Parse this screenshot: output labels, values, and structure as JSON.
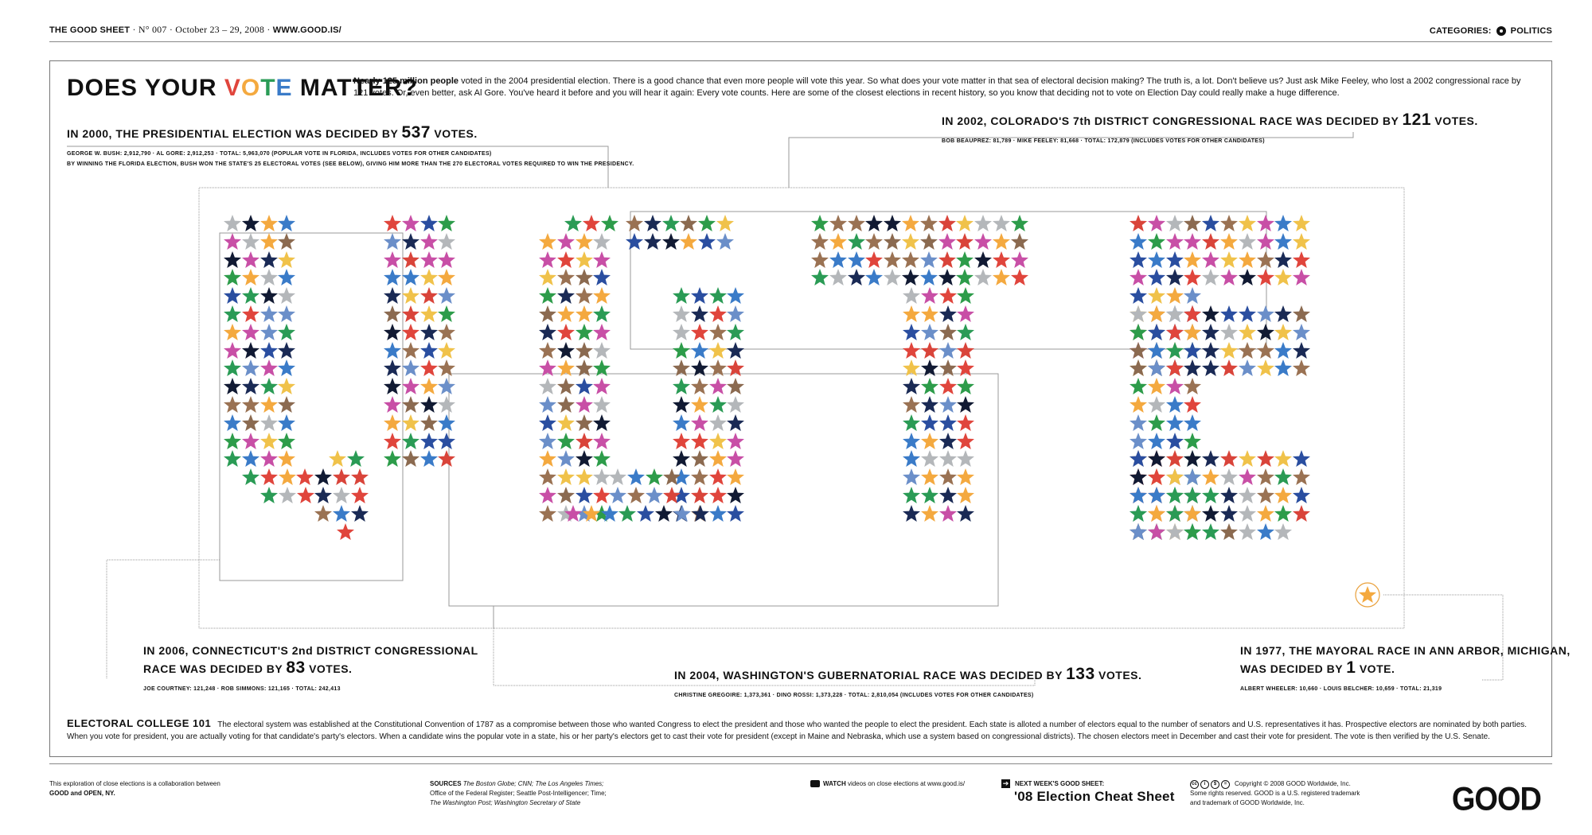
{
  "header": {
    "masthead": "THE GOOD SHEET",
    "issue": "N° 007",
    "dates": "October 23 – 29, 2008",
    "site": "WWW.GOOD.IS/",
    "categories_label": "CATEGORIES:",
    "category": "POLITICS"
  },
  "title": {
    "prefix": "DOES YOUR ",
    "v": "V",
    "o": "O",
    "t": "T",
    "e": "E",
    "suffix": " MATTER?"
  },
  "intro": {
    "lead": "Nearly 125 million people",
    "text": " voted in the 2004 presidential election. There is a good chance that even more people will vote this year. So what does your vote matter in that sea of electoral decision making? The truth is, a lot. Don't believe us? Just ask Mike Feeley, who lost a 2002 congressional race by 121 votes. Or, even better, ask Al Gore. You've heard it before and you will hear it again: Every vote counts. Here are some of the closest elections in recent history, so you know that deciding not to vote on Election Day could really make a huge difference."
  },
  "elections": {
    "e2000": {
      "pre": "IN 2000, THE PRESIDENTIAL ELECTION WAS DECIDED BY ",
      "num": "537",
      "post": " VOTES.",
      "detail1": "GEORGE W. BUSH: 2,912,790 · AL GORE: 2,912,253 · TOTAL: 5,963,070 (POPULAR VOTE IN FLORIDA, INCLUDES VOTES FOR OTHER CANDIDATES)",
      "detail2": "BY WINNING THE FLORIDA ELECTION, BUSH WON THE STATE'S 25 ELECTORAL VOTES (SEE BELOW), GIVING HIM MORE THAN THE 270 ELECTORAL VOTES REQUIRED TO WIN THE PRESIDENCY."
    },
    "e2002": {
      "pre": "IN 2002, COLORADO'S 7th DISTRICT CONGRESSIONAL RACE WAS DECIDED BY ",
      "num": "121",
      "post": " VOTES.",
      "detail": "BOB BEAUPREZ: 81,789 · MIKE FEELEY: 81,668 · TOTAL: 172,879 (INCLUDES VOTES FOR OTHER CANDIDATES)"
    },
    "e2006": {
      "line1": "IN 2006, CONNECTICUT'S 2nd DISTRICT CONGRESSIONAL",
      "pre": "RACE WAS DECIDED BY ",
      "num": "83",
      "post": " VOTES.",
      "detail": "JOE COURTNEY: 121,248 · ROB SIMMONS: 121,165 · TOTAL: 242,413"
    },
    "e2004": {
      "pre": "IN 2004, WASHINGTON'S GUBERNATORIAL RACE WAS DECIDED BY ",
      "num": "133",
      "post": " VOTES.",
      "detail": "CHRISTINE GREGOIRE: 1,373,361 · DINO ROSSI: 1,373,228 · TOTAL: 2,810,054 (INCLUDES VOTES FOR OTHER CANDIDATES)"
    },
    "e1977": {
      "line1": "IN 1977, THE MAYORAL RACE IN ANN ARBOR, MICHIGAN,",
      "pre": "WAS DECIDED BY ",
      "num": "1",
      "post": " VOTE.",
      "detail": "ALBERT WHEELER: 10,660 · LOUIS BELCHER: 10,659 · TOTAL: 21,319"
    }
  },
  "electoral_college": {
    "title": "ELECTORAL COLLEGE 101",
    "text": "The electoral system was established at the Constitutional Convention of 1787 as a compromise between those who wanted Congress to elect the president and those who wanted the people to elect the president.  Each state is alloted a number of electors equal to the number of senators and U.S. representatives it has. Prospective electors are nominated by both parties. When you vote for president, you are actually voting for that candidate's party's electors. When a candidate wins the popular vote in a state, his or her party's electors get to cast their vote for president (except in Maine and Nebraska, which use a system based on congressional districts). The chosen electors meet in December and cast their vote for president. The vote is then verified by the U.S. Senate."
  },
  "footer": {
    "collab1": "This exploration of close elections is a collaboration between",
    "collab2": "GOOD and OPEN, NY.",
    "sources_label": "SOURCES",
    "sources1": "The Boston Globe; CNN; The Los Angeles Times;",
    "sources2": "Office of the Federal Register; Seattle Post-Intelligencer; Time;",
    "sources3": "The Washington Post; Washington Secretary of State",
    "watch_label": "WATCH",
    "watch_text": " videos on close elections at www.good.is/",
    "next_label": "NEXT WEEK'S GOOD SHEET:",
    "next_title": "'08 Election Cheat Sheet",
    "copy1": "Copyright © 2008 GOOD Worldwide, Inc.",
    "copy2": "Some rights reserved. GOOD is a U.S. registered trademark",
    "copy3": "and trademark of GOOD Worldwide, Inc.",
    "logo": "GOOD"
  },
  "palette": [
    "#e0453c",
    "#f4a93f",
    "#2a9b55",
    "#3a7bc8",
    "#1a2a55",
    "#9a7253",
    "#c84fa6",
    "#b4b7ba",
    "#111a33",
    "#2d9c4a",
    "#2a4ea0",
    "#f0c24a",
    "#d9443a",
    "#8b6a50",
    "#6b8fc9"
  ],
  "icons": {
    "category": "politics-dot-icon",
    "watch": "video-icon",
    "next": "arrow-right-icon",
    "license": "creative-commons-icon",
    "highlight": "circled-star-icon"
  }
}
